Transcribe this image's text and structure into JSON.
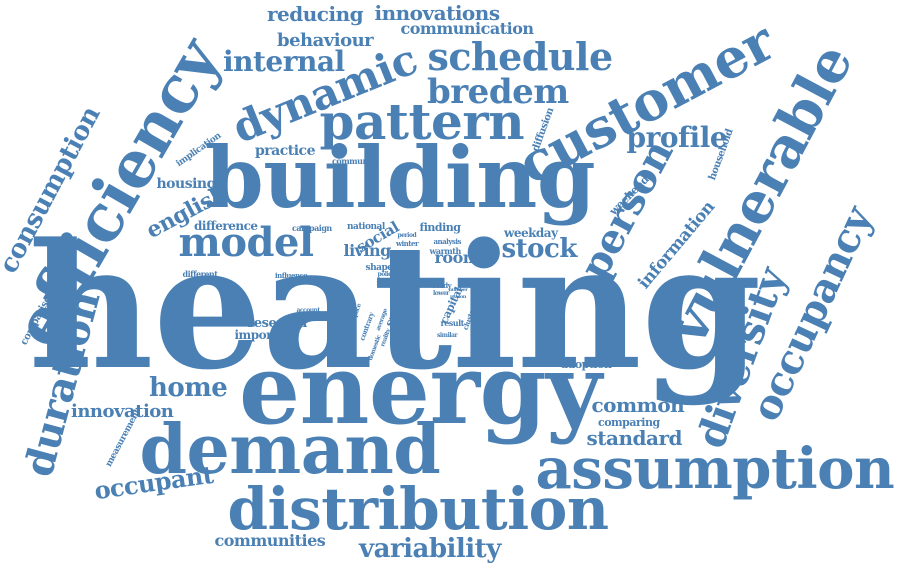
{
  "colors": {
    "word": "#4a80b4",
    "background": "#ffffff"
  },
  "words": [
    "heating",
    "energy",
    "building",
    "demand",
    "assumption",
    "distribution",
    "efficiency",
    "customer",
    "vulnerable",
    "pattern",
    "dynamic",
    "schedule",
    "occupancy",
    "diversity",
    "model",
    "duration",
    "person",
    "bredem",
    "consumption",
    "internal",
    "profile",
    "home",
    "stock",
    "occupant",
    "variability",
    "english",
    "reducing",
    "innovations",
    "behaviour",
    "communication",
    "standard",
    "common",
    "information",
    "innovation",
    "communities",
    "room",
    "living",
    "social",
    "housing",
    "practice",
    "difference",
    "research",
    "important",
    "capital",
    "space",
    "weekday",
    "weekend",
    "household",
    "diffusion",
    "comparing",
    "adoption",
    "finding",
    "comparison",
    "measurement",
    "implication",
    "community",
    "national",
    "campaign",
    "shape",
    "warmth",
    "analysis",
    "different",
    "influence",
    "account",
    "survey",
    "contrary",
    "system",
    "result",
    "cluster",
    "study",
    "domestic",
    "reality",
    "similar",
    "average",
    "winter",
    "period",
    "policy",
    "most",
    "lower",
    "number",
    "reason",
    "space"
  ]
}
